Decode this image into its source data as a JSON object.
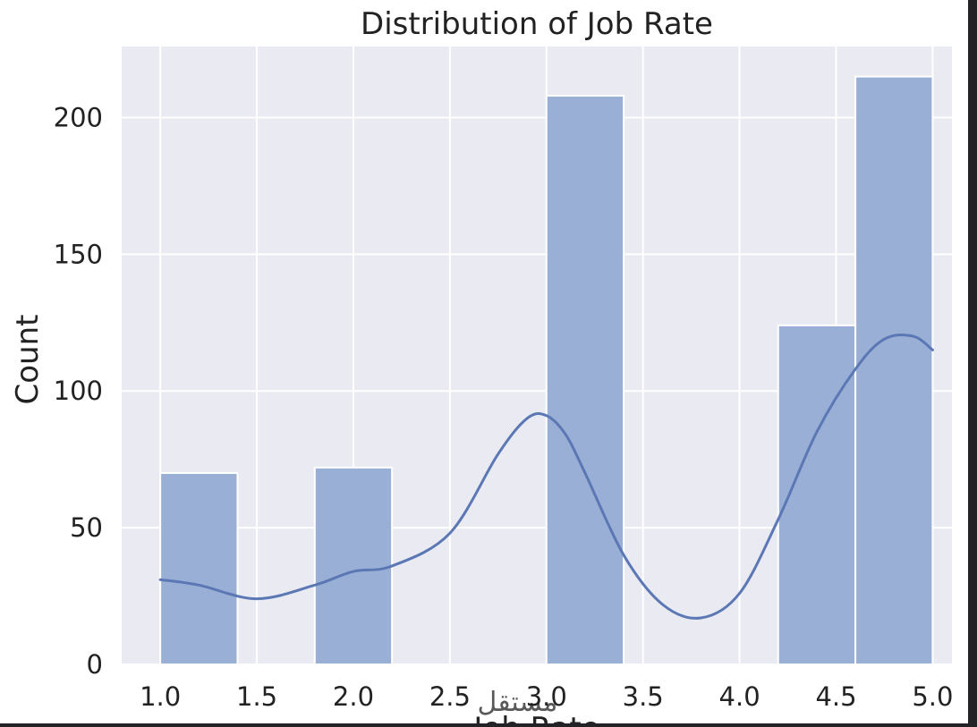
{
  "chart_data": {
    "type": "bar",
    "title": "Distribution of Job Rate",
    "xlabel": "Job Rate",
    "ylabel": "Count",
    "xlim": [
      0.8,
      5.1
    ],
    "ylim": [
      0,
      226
    ],
    "grid": true,
    "xticks": [
      "1.0",
      "1.5",
      "2.0",
      "2.5",
      "3.0",
      "3.5",
      "4.0",
      "4.5",
      "5.0"
    ],
    "yticks": [
      "0",
      "50",
      "100",
      "150",
      "200"
    ],
    "bins": [
      {
        "x0": 1.0,
        "x1": 1.4,
        "value": 70
      },
      {
        "x0": 1.8,
        "x1": 2.2,
        "value": 72
      },
      {
        "x0": 3.0,
        "x1": 3.4,
        "value": 208
      },
      {
        "x0": 4.2,
        "x1": 4.6,
        "value": 124
      },
      {
        "x0": 4.6,
        "x1": 5.0,
        "value": 215
      }
    ],
    "kde": {
      "x": [
        1.0,
        1.2,
        1.5,
        1.8,
        2.0,
        2.2,
        2.5,
        2.75,
        2.9,
        3.0,
        3.1,
        3.2,
        3.4,
        3.6,
        3.8,
        4.0,
        4.2,
        4.4,
        4.6,
        4.75,
        4.9,
        5.0
      ],
      "y": [
        31,
        29,
        24,
        29,
        34,
        36,
        48,
        77,
        90,
        91,
        84,
        70,
        40,
        22,
        17,
        26,
        53,
        85,
        108,
        119,
        120,
        115
      ]
    },
    "colors": {
      "bar_fill": "#9aafd5",
      "bar_stroke": "#ffffff",
      "kde_line": "#5b78b5",
      "plot_bg": "#eaeaf2",
      "grid": "#ffffff"
    },
    "watermark": "مستقل"
  }
}
